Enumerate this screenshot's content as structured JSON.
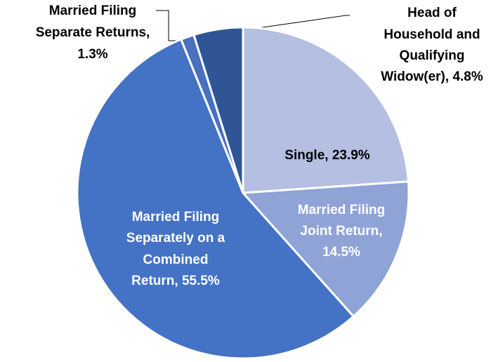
{
  "chart_data": {
    "type": "pie",
    "values": [
      23.9,
      14.5,
      55.5,
      1.3,
      4.8
    ],
    "value_labels": [
      [
        "Single, 23.9%"
      ],
      [
        "Married Filing",
        "Joint Return,",
        "14.5%"
      ],
      [
        "Married Filing",
        "Separately on a",
        "Combined",
        "Return, 55.5%"
      ],
      [
        "Married Filing",
        "Separate Returns,",
        "1.3%"
      ],
      [
        "Head of",
        "Household and",
        "Qualifying",
        "Widow(er), 4.8%"
      ]
    ],
    "colors": [
      "#b4bfe2",
      "#8fa3d6",
      "#4472c4",
      "#4a70c0",
      "#2f5597"
    ]
  }
}
